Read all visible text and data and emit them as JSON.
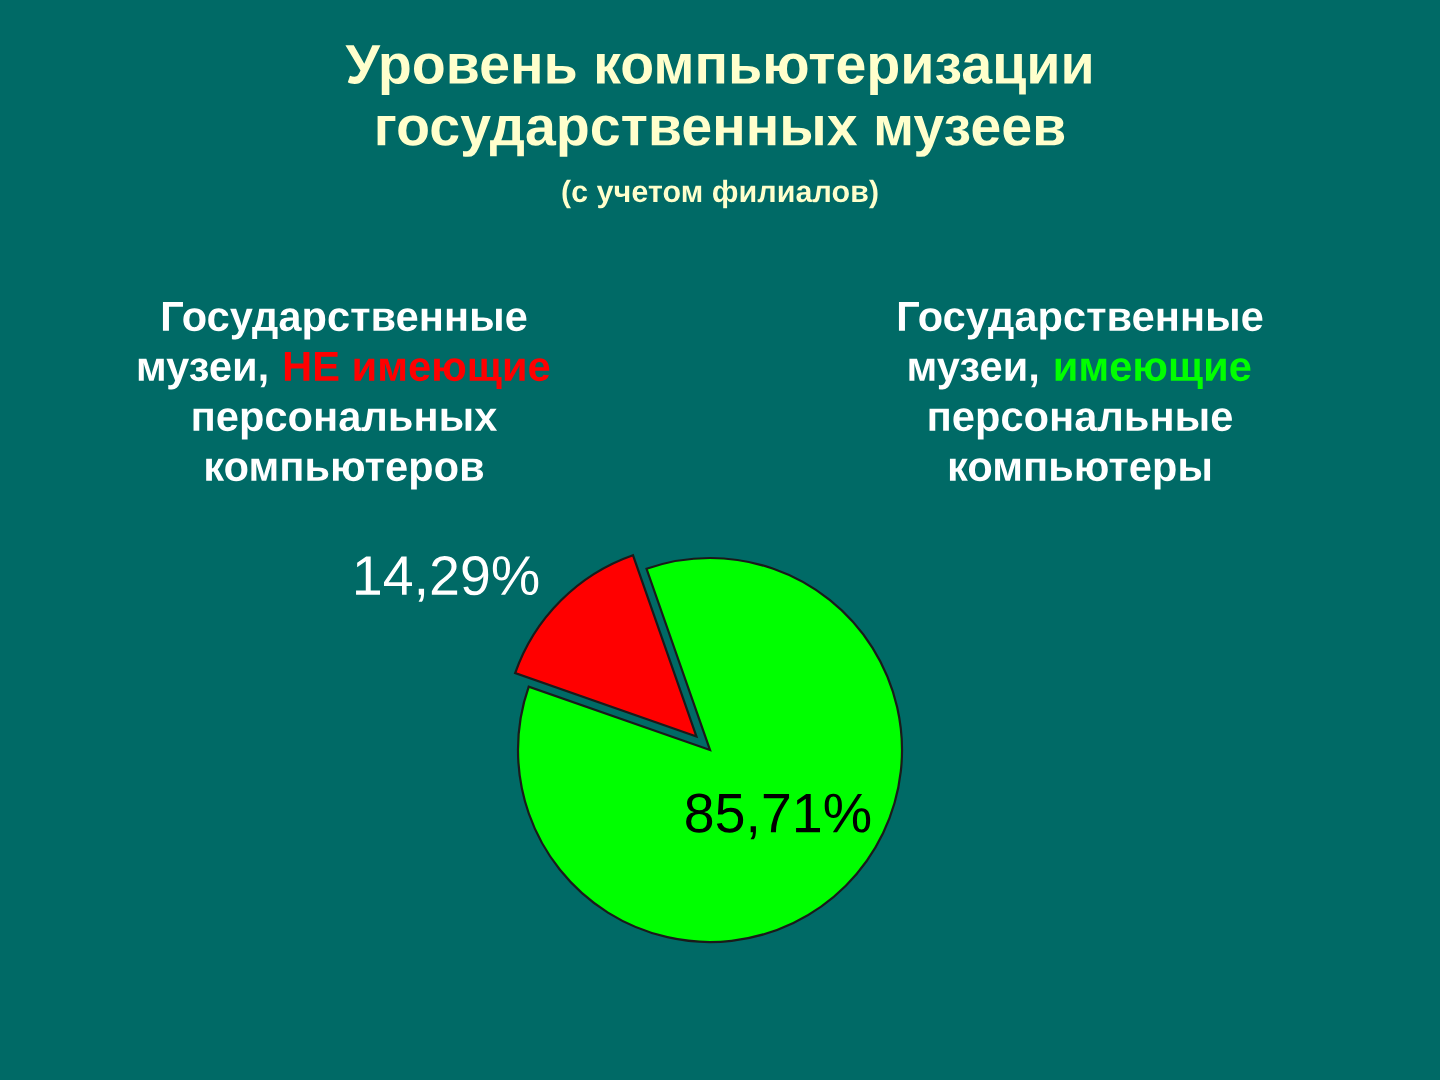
{
  "chart_data": {
    "type": "pie",
    "title": "Уровень компьютеризации\nгосударственных музеев",
    "subtitle": "(с учетом филиалов)",
    "categories": [
      "Государственные\nмузеи, НЕ имеющие\nперсональных\nкомпьютеров",
      "Государственные\nмузеи, имеющие\nперсональные\nкомпьютеры"
    ],
    "values": [
      14.29,
      85.71
    ],
    "colors": [
      "#ff0000",
      "#00ff00"
    ],
    "value_labels": [
      "14,29%",
      "85,71%"
    ]
  }
}
